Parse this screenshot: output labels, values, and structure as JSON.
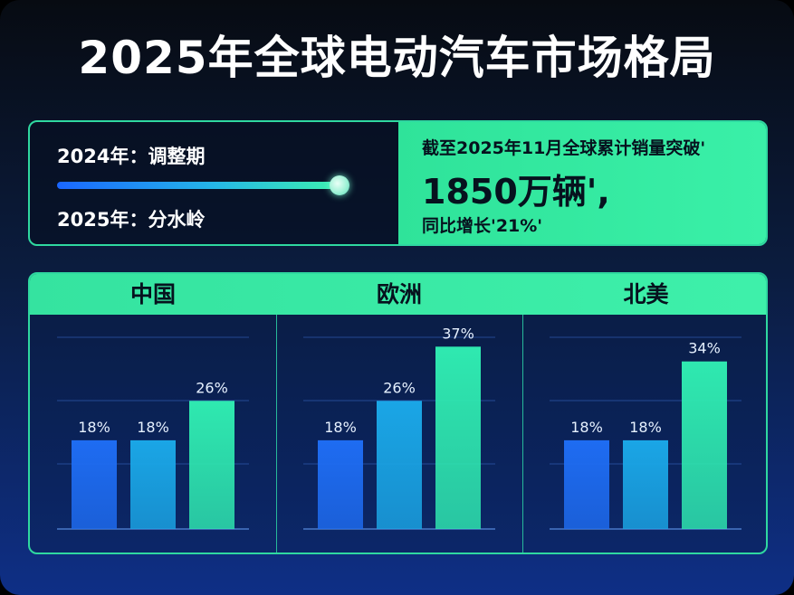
{
  "title": "2025年全球电动汽车市场格局",
  "timeline": {
    "item_2024": "2024年：调整期",
    "item_2025": "2025年：分水岭"
  },
  "highlight": {
    "line1": "截至2025年11月全球累计销量突破'",
    "line2": "1850万辆',",
    "line3": "同比增长'21%'"
  },
  "colors": {
    "accent_green": "#3af0a8",
    "bar_1": "#1e6cf2",
    "bar_2": "#1aa6e6",
    "bar_3": "#2fe9b0"
  },
  "chart_data": [
    {
      "type": "bar",
      "title": "中国",
      "values": [
        18,
        18,
        26
      ],
      "value_labels": [
        "18%",
        "18%",
        "26%"
      ]
    },
    {
      "type": "bar",
      "title": "欧洲",
      "values": [
        18,
        26,
        37
      ],
      "value_labels": [
        "18%",
        "26%",
        "37%"
      ]
    },
    {
      "type": "bar",
      "title": "北美",
      "values": [
        18,
        18,
        34
      ],
      "value_labels": [
        "18%",
        "18%",
        "34%"
      ]
    }
  ]
}
